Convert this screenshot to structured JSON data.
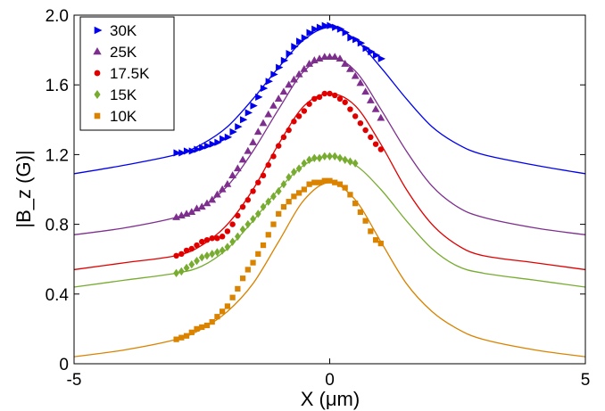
{
  "chart_data": {
    "type": "scatter",
    "title": "",
    "xlabel": "X (μm)",
    "ylabel": "|B_z (G)|",
    "xlim": [
      -5,
      5
    ],
    "ylim": [
      0,
      2.0
    ],
    "xticks": [
      -5,
      0,
      5
    ],
    "xtick_labels": [
      "-5",
      "0",
      "5"
    ],
    "yticks": [
      0,
      0.4,
      0.8,
      1.2,
      1.6,
      2.0
    ],
    "ytick_labels": [
      "0",
      "0.4",
      "0.8",
      "1.2",
      "1.6",
      "2.0"
    ],
    "grid": false,
    "legend_position": "top-left",
    "series": [
      {
        "name": "30K",
        "color": "#0000ee",
        "marker": "triangle-right",
        "curve_offset": 1.09,
        "fit_x": [
          -5,
          -4,
          -3,
          -2.5,
          -2,
          -1.5,
          -1,
          -0.5,
          0,
          0.5,
          1,
          1.5,
          2,
          2.5,
          3,
          4,
          5
        ],
        "fit_y": [
          1.09,
          1.14,
          1.2,
          1.26,
          1.36,
          1.52,
          1.7,
          1.86,
          1.93,
          1.86,
          1.7,
          1.52,
          1.36,
          1.26,
          1.2,
          1.14,
          1.09
        ],
        "points_x": [
          -3.0,
          -2.9,
          -2.8,
          -2.7,
          -2.6,
          -2.5,
          -2.4,
          -2.3,
          -2.2,
          -2.1,
          -2.0,
          -1.9,
          -1.8,
          -1.7,
          -1.6,
          -1.5,
          -1.4,
          -1.3,
          -1.2,
          -1.1,
          -1.0,
          -0.9,
          -0.8,
          -0.7,
          -0.6,
          -0.5,
          -0.4,
          -0.3,
          -0.2,
          -0.1,
          0.0,
          0.1,
          0.2,
          0.3,
          0.4,
          0.5,
          0.6,
          0.7,
          0.8,
          0.9,
          1.0
        ],
        "points_y": [
          1.21,
          1.21,
          1.22,
          1.22,
          1.23,
          1.24,
          1.25,
          1.26,
          1.27,
          1.29,
          1.3,
          1.33,
          1.36,
          1.4,
          1.44,
          1.48,
          1.53,
          1.58,
          1.62,
          1.66,
          1.7,
          1.74,
          1.78,
          1.82,
          1.85,
          1.87,
          1.9,
          1.92,
          1.93,
          1.94,
          1.94,
          1.93,
          1.92,
          1.9,
          1.87,
          1.86,
          1.84,
          1.81,
          1.79,
          1.77,
          1.75
        ]
      },
      {
        "name": "25K",
        "color": "#7e2f8e",
        "marker": "triangle-up",
        "curve_offset": 0.74,
        "fit_x": [
          -5,
          -4,
          -3,
          -2.5,
          -2,
          -1.5,
          -1,
          -0.5,
          0,
          0.5,
          1,
          1.5,
          2,
          2.5,
          3,
          4,
          5
        ],
        "fit_y": [
          0.74,
          0.78,
          0.84,
          0.9,
          1.02,
          1.22,
          1.46,
          1.68,
          1.76,
          1.68,
          1.46,
          1.22,
          1.02,
          0.9,
          0.84,
          0.78,
          0.74
        ],
        "points_x": [
          -3.0,
          -2.9,
          -2.8,
          -2.7,
          -2.6,
          -2.5,
          -2.4,
          -2.3,
          -2.2,
          -2.1,
          -2.0,
          -1.9,
          -1.8,
          -1.7,
          -1.6,
          -1.5,
          -1.4,
          -1.3,
          -1.2,
          -1.1,
          -1.0,
          -0.9,
          -0.8,
          -0.7,
          -0.6,
          -0.5,
          -0.4,
          -0.3,
          -0.2,
          -0.1,
          0.0,
          0.1,
          0.2,
          0.3,
          0.4,
          0.5,
          0.6,
          0.7,
          0.8,
          0.9,
          1.0
        ],
        "points_y": [
          0.84,
          0.85,
          0.86,
          0.87,
          0.89,
          0.9,
          0.92,
          0.94,
          0.97,
          1.0,
          1.03,
          1.08,
          1.12,
          1.17,
          1.22,
          1.27,
          1.33,
          1.38,
          1.43,
          1.48,
          1.52,
          1.56,
          1.6,
          1.63,
          1.66,
          1.69,
          1.72,
          1.74,
          1.75,
          1.76,
          1.76,
          1.76,
          1.75,
          1.72,
          1.69,
          1.65,
          1.61,
          1.56,
          1.51,
          1.46,
          1.41
        ]
      },
      {
        "name": "17.5K",
        "color": "#e00000",
        "marker": "circle",
        "curve_offset": 0.54,
        "fit_x": [
          -5,
          -4,
          -3,
          -2.5,
          -2,
          -1.5,
          -1,
          -0.5,
          0,
          0.5,
          1,
          1.5,
          2,
          2.5,
          3,
          4,
          5
        ],
        "fit_y": [
          0.54,
          0.58,
          0.62,
          0.68,
          0.8,
          1.0,
          1.26,
          1.48,
          1.55,
          1.48,
          1.26,
          1.0,
          0.8,
          0.68,
          0.62,
          0.58,
          0.54
        ],
        "points_x": [
          -3.0,
          -2.9,
          -2.8,
          -2.7,
          -2.6,
          -2.5,
          -2.4,
          -2.3,
          -2.2,
          -2.1,
          -2.0,
          -1.9,
          -1.8,
          -1.7,
          -1.6,
          -1.5,
          -1.4,
          -1.3,
          -1.2,
          -1.1,
          -1.0,
          -0.9,
          -0.8,
          -0.7,
          -0.6,
          -0.5,
          -0.4,
          -0.3,
          -0.2,
          -0.1,
          0.0,
          0.1,
          0.2,
          0.3,
          0.4,
          0.5,
          0.6,
          0.7,
          0.8,
          0.9,
          1.0
        ],
        "points_y": [
          0.62,
          0.63,
          0.65,
          0.66,
          0.68,
          0.7,
          0.71,
          0.72,
          0.72,
          0.73,
          0.76,
          0.8,
          0.85,
          0.9,
          0.94,
          0.99,
          1.04,
          1.08,
          1.14,
          1.19,
          1.25,
          1.3,
          1.34,
          1.39,
          1.42,
          1.45,
          1.49,
          1.52,
          1.53,
          1.55,
          1.55,
          1.54,
          1.52,
          1.5,
          1.46,
          1.42,
          1.38,
          1.34,
          1.3,
          1.26,
          1.23
        ]
      },
      {
        "name": "15K",
        "color": "#77ac30",
        "marker": "diamond",
        "curve_offset": 0.44,
        "fit_x": [
          -5,
          -4,
          -3,
          -2.5,
          -2,
          -1.5,
          -1,
          -0.5,
          0,
          0.5,
          1,
          1.5,
          2,
          2.5,
          3,
          4,
          5
        ],
        "fit_y": [
          0.44,
          0.48,
          0.52,
          0.56,
          0.66,
          0.82,
          1.0,
          1.14,
          1.19,
          1.14,
          1.0,
          0.82,
          0.66,
          0.56,
          0.52,
          0.48,
          0.44
        ],
        "points_x": [
          -3.0,
          -2.9,
          -2.8,
          -2.7,
          -2.6,
          -2.5,
          -2.4,
          -2.3,
          -2.2,
          -2.1,
          -2.0,
          -1.9,
          -1.8,
          -1.7,
          -1.6,
          -1.5,
          -1.4,
          -1.3,
          -1.2,
          -1.1,
          -1.0,
          -0.9,
          -0.8,
          -0.7,
          -0.6,
          -0.5,
          -0.4,
          -0.3,
          -0.2,
          -0.1,
          0.0,
          0.1,
          0.2,
          0.3,
          0.4,
          0.5
        ],
        "points_y": [
          0.52,
          0.53,
          0.55,
          0.57,
          0.59,
          0.61,
          0.62,
          0.63,
          0.64,
          0.65,
          0.67,
          0.7,
          0.73,
          0.77,
          0.8,
          0.83,
          0.86,
          0.9,
          0.93,
          0.96,
          0.99,
          1.03,
          1.07,
          1.1,
          1.12,
          1.15,
          1.17,
          1.18,
          1.18,
          1.19,
          1.19,
          1.19,
          1.18,
          1.17,
          1.16,
          1.15
        ]
      },
      {
        "name": "10K",
        "color": "#d98300",
        "marker": "square",
        "curve_offset": 0.04,
        "fit_x": [
          -5,
          -4,
          -3,
          -2.5,
          -2,
          -1.5,
          -1,
          -0.5,
          0,
          0.5,
          1,
          1.5,
          2,
          2.5,
          3,
          4,
          5
        ],
        "fit_y": [
          0.04,
          0.08,
          0.14,
          0.2,
          0.3,
          0.46,
          0.7,
          0.94,
          1.04,
          0.94,
          0.7,
          0.46,
          0.3,
          0.2,
          0.14,
          0.08,
          0.04
        ],
        "points_x": [
          -3.0,
          -2.9,
          -2.8,
          -2.7,
          -2.6,
          -2.5,
          -2.4,
          -2.3,
          -2.2,
          -2.1,
          -2.0,
          -1.9,
          -1.8,
          -1.7,
          -1.6,
          -1.5,
          -1.4,
          -1.3,
          -1.2,
          -1.1,
          -1.0,
          -0.9,
          -0.8,
          -0.7,
          -0.6,
          -0.5,
          -0.4,
          -0.3,
          -0.2,
          -0.1,
          0.0,
          0.1,
          0.2,
          0.3,
          0.4,
          0.5,
          0.6,
          0.7,
          0.8,
          0.9,
          1.0
        ],
        "points_y": [
          0.14,
          0.15,
          0.16,
          0.18,
          0.2,
          0.21,
          0.22,
          0.24,
          0.27,
          0.3,
          0.33,
          0.38,
          0.43,
          0.49,
          0.54,
          0.58,
          0.63,
          0.68,
          0.74,
          0.8,
          0.86,
          0.9,
          0.93,
          0.96,
          0.98,
          1.0,
          1.03,
          1.04,
          1.04,
          1.05,
          1.05,
          1.04,
          1.03,
          1.01,
          0.97,
          0.92,
          0.87,
          0.82,
          0.76,
          0.71,
          0.69
        ]
      }
    ]
  }
}
